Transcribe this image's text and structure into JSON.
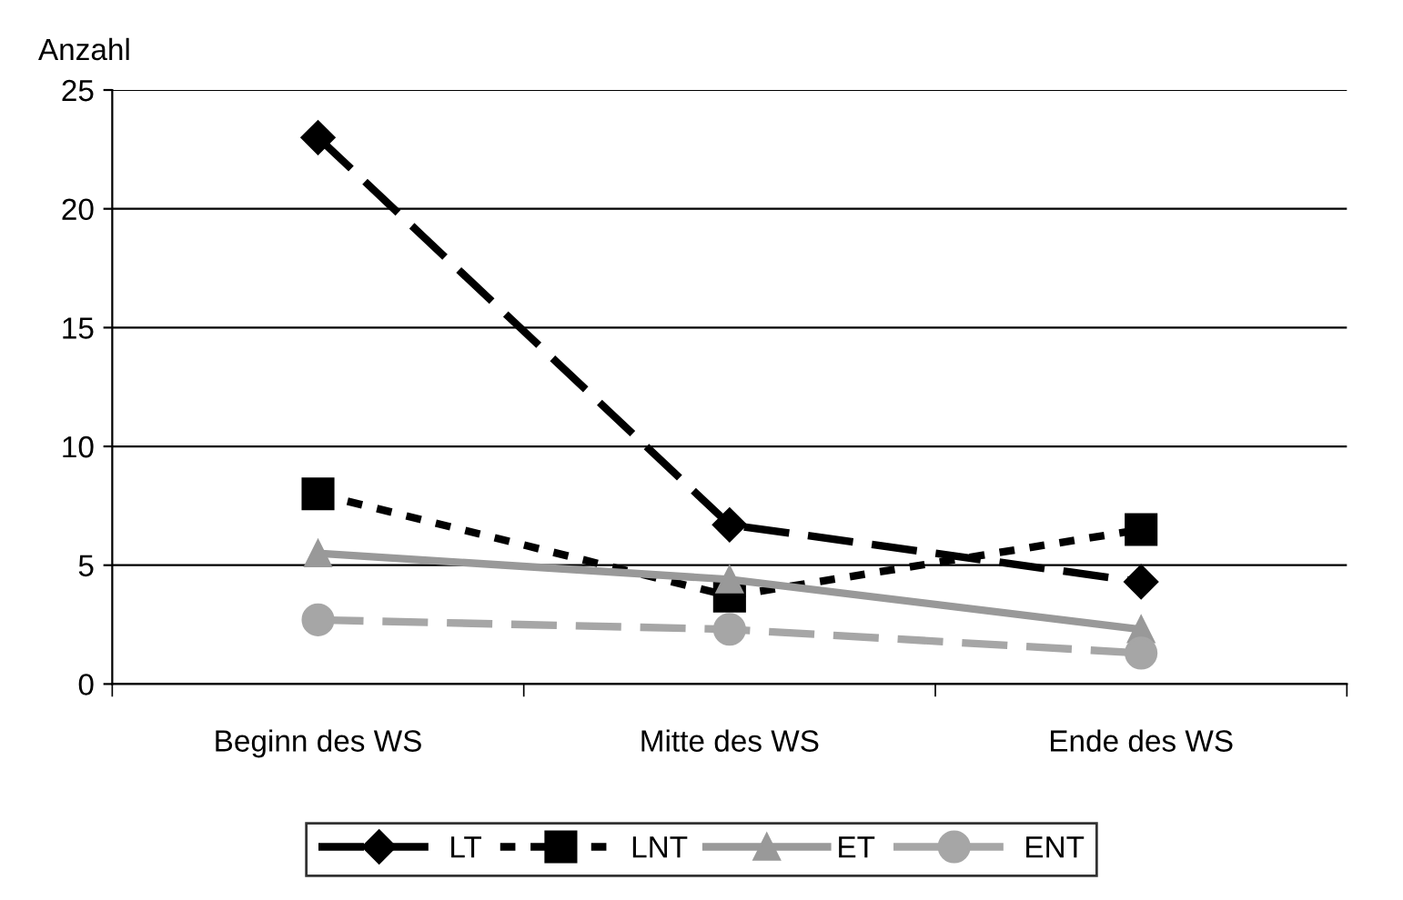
{
  "chart_data": {
    "type": "line",
    "ylabel": "Anzahl",
    "categories": [
      "Beginn des WS",
      "Mitte des WS",
      "Ende des WS"
    ],
    "series": [
      {
        "name": "LT",
        "color": "#000000",
        "values": [
          23,
          6.7,
          4.3
        ],
        "marker": "diamond",
        "line_style": "dashed"
      },
      {
        "name": "LNT",
        "color": "#000000",
        "values": [
          8,
          3.7,
          6.5
        ],
        "marker": "square",
        "line_style": "dotted"
      },
      {
        "name": "ET",
        "color": "#999999",
        "values": [
          5.5,
          4.4,
          2.3
        ],
        "marker": "triangle",
        "line_style": "solid"
      },
      {
        "name": "ENT",
        "color": "#a6a6a6",
        "values": [
          2.7,
          2.3,
          1.3
        ],
        "marker": "circle",
        "line_style": "dashed"
      }
    ],
    "ylim": [
      0,
      25
    ],
    "yticks": [
      0,
      5,
      10,
      15,
      20,
      25
    ],
    "grid": "y",
    "legend": "bottom"
  }
}
